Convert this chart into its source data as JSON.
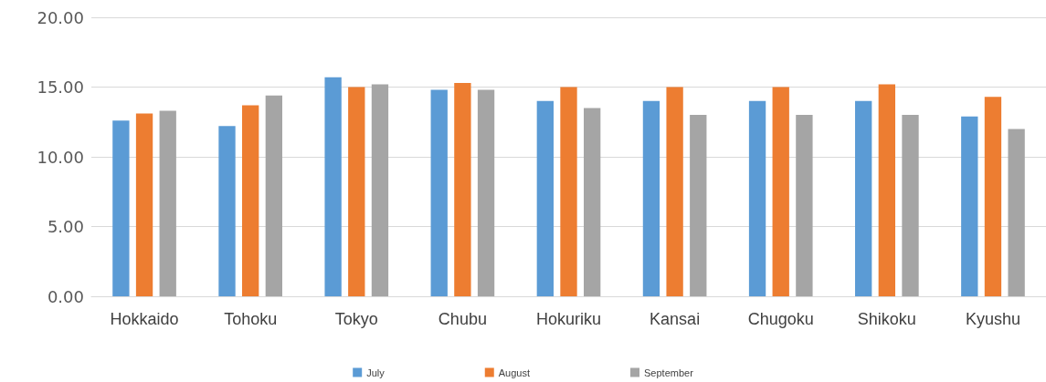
{
  "chart_data": {
    "type": "bar",
    "categories": [
      "Hokkaido",
      "Tohoku",
      "Tokyo",
      "Chubu",
      "Hokuriku",
      "Kansai",
      "Chugoku",
      "Shikoku",
      "Kyushu"
    ],
    "series": [
      {
        "name": "July",
        "color": "#5b9bd5",
        "values": [
          12.6,
          12.2,
          15.7,
          14.8,
          14.0,
          14.0,
          14.0,
          14.0,
          12.9
        ]
      },
      {
        "name": "August",
        "color": "#ed7d31",
        "values": [
          13.1,
          13.7,
          15.0,
          15.3,
          15.0,
          15.0,
          15.0,
          15.2,
          14.3
        ]
      },
      {
        "name": "September",
        "color": "#a5a5a5",
        "values": [
          13.3,
          14.4,
          15.2,
          14.8,
          13.5,
          13.0,
          13.0,
          13.0,
          12.0
        ]
      }
    ],
    "ylim": [
      0,
      20
    ],
    "yticks": [
      {
        "value": 0,
        "label": "0.00"
      },
      {
        "value": 5,
        "label": "5.00"
      },
      {
        "value": 10,
        "label": "10.00"
      },
      {
        "value": 15,
        "label": "15.00"
      },
      {
        "value": 20,
        "label": "20.00"
      }
    ],
    "grid": "y",
    "legend": "bottom"
  }
}
